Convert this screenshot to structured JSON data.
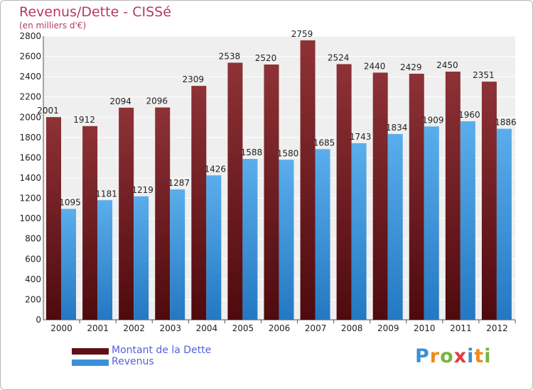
{
  "title": "Revenus/Dette - CISSé",
  "subtitle": "(en milliers d'€)",
  "logo": {
    "letters": [
      "P",
      "r",
      "o",
      "x",
      "i",
      "t",
      "i"
    ],
    "colors": [
      "#3b8fd6",
      "#f08a1c",
      "#7ab33a",
      "#e23b3b",
      "#3b8fd6",
      "#f08a1c",
      "#7ab33a"
    ]
  },
  "colors": {
    "dette": "#7a1c22",
    "revenus": "#3a90d8",
    "background": "#efefef",
    "grid": "#ffffff"
  },
  "chart_data": {
    "type": "bar",
    "categories": [
      "2000",
      "2001",
      "2002",
      "2003",
      "2004",
      "2005",
      "2006",
      "2007",
      "2008",
      "2009",
      "2010",
      "2011",
      "2012"
    ],
    "series": [
      {
        "name": "Montant de la Dette",
        "values": [
          2001,
          1912,
          2094,
          2096,
          2309,
          2538,
          2520,
          2759,
          2524,
          2440,
          2429,
          2450,
          2351
        ]
      },
      {
        "name": "Revenus",
        "values": [
          1095,
          1181,
          1219,
          1287,
          1426,
          1588,
          1580,
          1685,
          1743,
          1834,
          1909,
          1960,
          1886
        ]
      }
    ],
    "ylim": [
      0,
      2800
    ],
    "yticks": [
      "0",
      "200",
      "400",
      "600",
      "800",
      "1000",
      "1200",
      "1400",
      "1600",
      "1800",
      "2000",
      "2200",
      "2400",
      "2600",
      "2800"
    ],
    "grid": true,
    "legend": "bottom-left"
  }
}
